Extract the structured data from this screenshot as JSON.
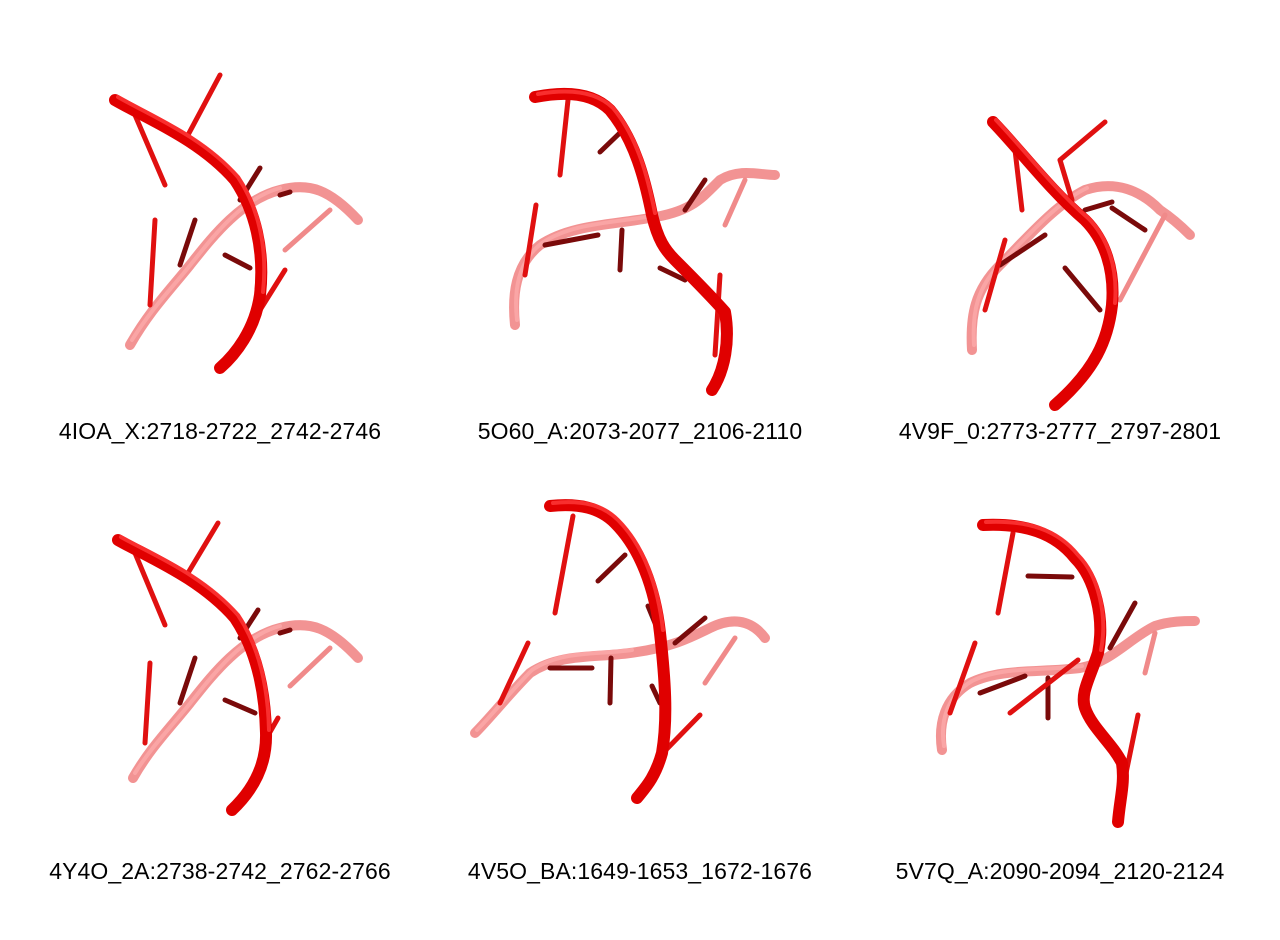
{
  "figure": {
    "panels": [
      {
        "id": "p1",
        "caption": "4IOA_X:2718-2722_2742-2746"
      },
      {
        "id": "p2",
        "caption": "5O60_A:2073-2077_2106-2110"
      },
      {
        "id": "p3",
        "caption": "4V9F_0:2773-2777_2797-2801"
      },
      {
        "id": "p4",
        "caption": "4Y4O_2A:2738-2742_2762-2766"
      },
      {
        "id": "p5",
        "caption": "4V5O_BA:1649-1653_1672-1676"
      },
      {
        "id": "p6",
        "caption": "5V7Q_A:2090-2094_2120-2124"
      }
    ]
  },
  "colors": {
    "front_strand": "#e00000",
    "back_strand": "#f08080",
    "dark_base": "#7a0a0a"
  }
}
